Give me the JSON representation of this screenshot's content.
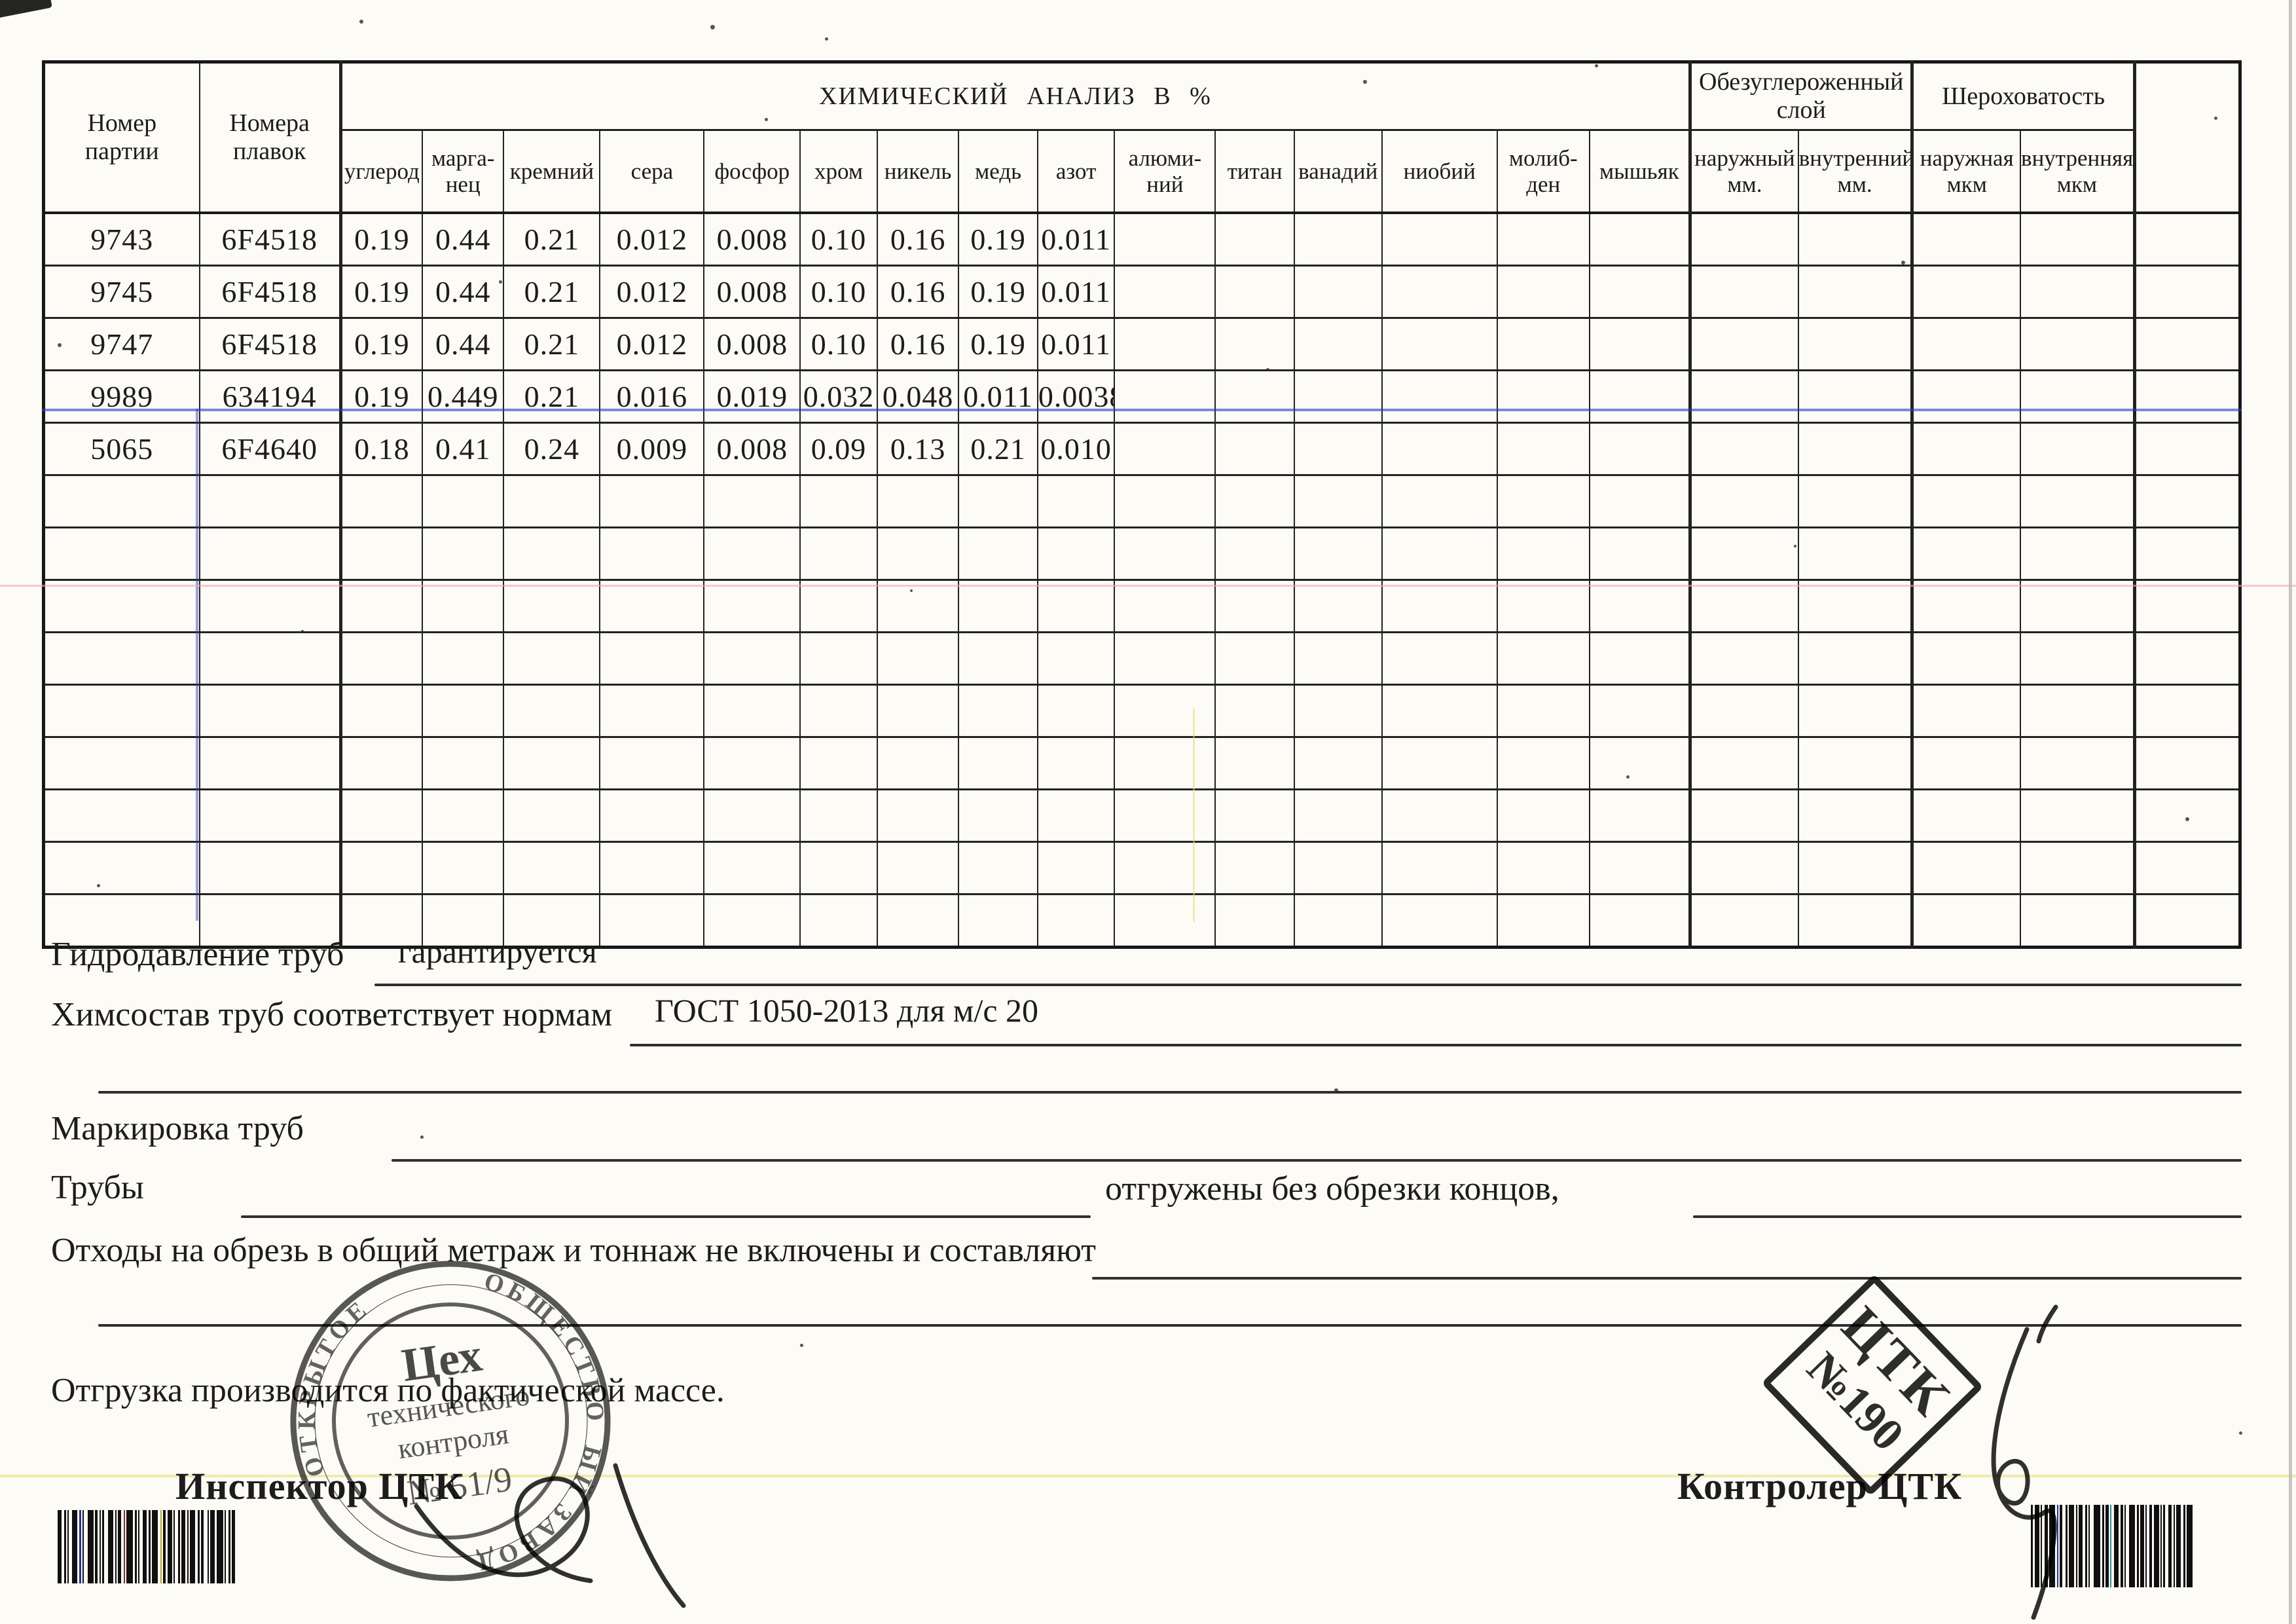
{
  "page": {
    "table": {
      "batch_col_header": "Номер\nпартии",
      "melt_col_header": "Номера\nплавок",
      "chem_group_header": "ХИМИЧЕСКИЙ АНАЛИЗ В %",
      "decarb_group_header": "Обезуглероженный\nслой",
      "roughness_group_header": "Шероховатость",
      "leaf_headers": [
        "углерод",
        "марга-\nнец",
        "кремний",
        "сера",
        "фосфор",
        "хром",
        "никель",
        "медь",
        "азот",
        "алюми-\nний",
        "титан",
        "ванадий",
        "ниобий",
        "молиб-\nден",
        "мышьяк",
        "наружный\nмм.",
        "внутренний\nмм.",
        "наружная\nмкм",
        "внутренняя\nмкм"
      ],
      "rows": [
        [
          "9743",
          "6F4518",
          "0.19",
          "0.44",
          "0.21",
          "0.012",
          "0.008",
          "0.10",
          "0.16",
          "0.19",
          "0.011"
        ],
        [
          "9745",
          "6F4518",
          "0.19",
          "0.44",
          "0.21",
          "0.012",
          "0.008",
          "0.10",
          "0.16",
          "0.19",
          "0.011"
        ],
        [
          "9747",
          "6F4518",
          "0.19",
          "0.44",
          "0.21",
          "0.012",
          "0.008",
          "0.10",
          "0.16",
          "0.19",
          "0.011"
        ],
        [
          "9989",
          "634194",
          "0.19",
          "0.449",
          "0.21",
          "0.016",
          "0.019",
          "0.032",
          "0.048",
          "0.011",
          "0.0038"
        ],
        [
          "5065",
          "6F4640",
          "0.18",
          "0.41",
          "0.24",
          "0.009",
          "0.008",
          "0.09",
          "0.13",
          "0.21",
          "0.010"
        ]
      ],
      "empty_row_count": 9
    },
    "fields": {
      "hydro_label": "Гидродавление труб",
      "hydro_value": "гарантируется",
      "chem_label": "Химсостав труб соответствует нормам",
      "chem_value": "ГОСТ 1050-2013 для м/с 20",
      "marking_label": "Маркировка труб",
      "pipes_label": "Трубы",
      "pipes_note": "отгружены без обрезки концов,",
      "waste_label": "Отходы на обрезь в общий метраж и тоннаж не включены и составляют",
      "shipping_note": "Отгрузка производится по фактической массе.",
      "inspector_label": "Инспектор ЦТК",
      "controller_label": "Контролер ЦТК"
    },
    "stamps": {
      "round": {
        "line1": "Цех",
        "line2": "технического",
        "line3": "контроля",
        "line4": "№ 51/9",
        "ring_right": "ОБЩЕСТВО",
        "ring_bottom": "ЫЙ ЗАВОД",
        "ring_left": "ОТКРЫТОЕ"
      },
      "diamond": {
        "line1": "ЦТК",
        "line2": "№190"
      }
    },
    "colors": {
      "ink": "#1c1c1c",
      "artifact_blue": "#2838c8",
      "artifact_pink": "#eba9b6",
      "artifact_yellow": "#e6dc6e"
    }
  }
}
